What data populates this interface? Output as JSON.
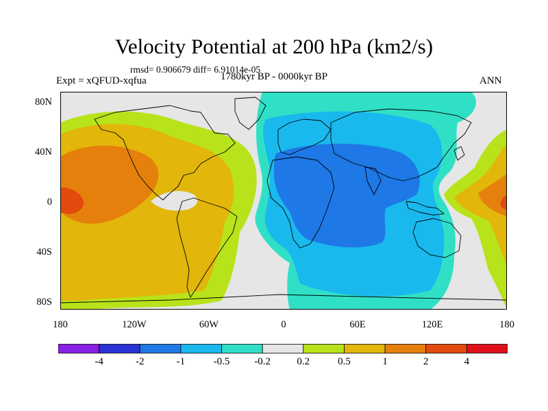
{
  "title": "Velocity Potential at 200 hPa (km2/s)",
  "stats": "rmsd= 0.906679 diff= 6.91014e-05",
  "expt": "Expt = xQFUD-xqfua",
  "period": "1780kyr BP - 0000kyr BP",
  "season": "ANN",
  "lat_labels": [
    "80N",
    "40N",
    "0",
    "40S",
    "80S"
  ],
  "lon_labels": [
    "180",
    "120W",
    "60W",
    "0",
    "60E",
    "120E",
    "180"
  ],
  "colorbar": {
    "labels": [
      "-4",
      "-2",
      "-1",
      "-0.5",
      "-0.2",
      "0.2",
      "0.5",
      "1",
      "2",
      "4"
    ],
    "colors": [
      "#8a1fe6",
      "#2a32d6",
      "#1e78e6",
      "#19b9ee",
      "#30e0c6",
      "#e6e6e6",
      "#b8e31a",
      "#e2b60a",
      "#e5800c",
      "#e24a0e",
      "#e0101a"
    ]
  },
  "map_colors": {
    "land_outline": "#000000",
    "neutral": "#e6e6e6",
    "neg_weak": "#30e0c6",
    "neg_mid": "#19b9ee",
    "neg_strong": "#1e78e6",
    "pos_weak": "#b8e31a",
    "pos_mid": "#e2b60a",
    "pos_strong": "#e5800c",
    "pos_max": "#e24a0e"
  }
}
